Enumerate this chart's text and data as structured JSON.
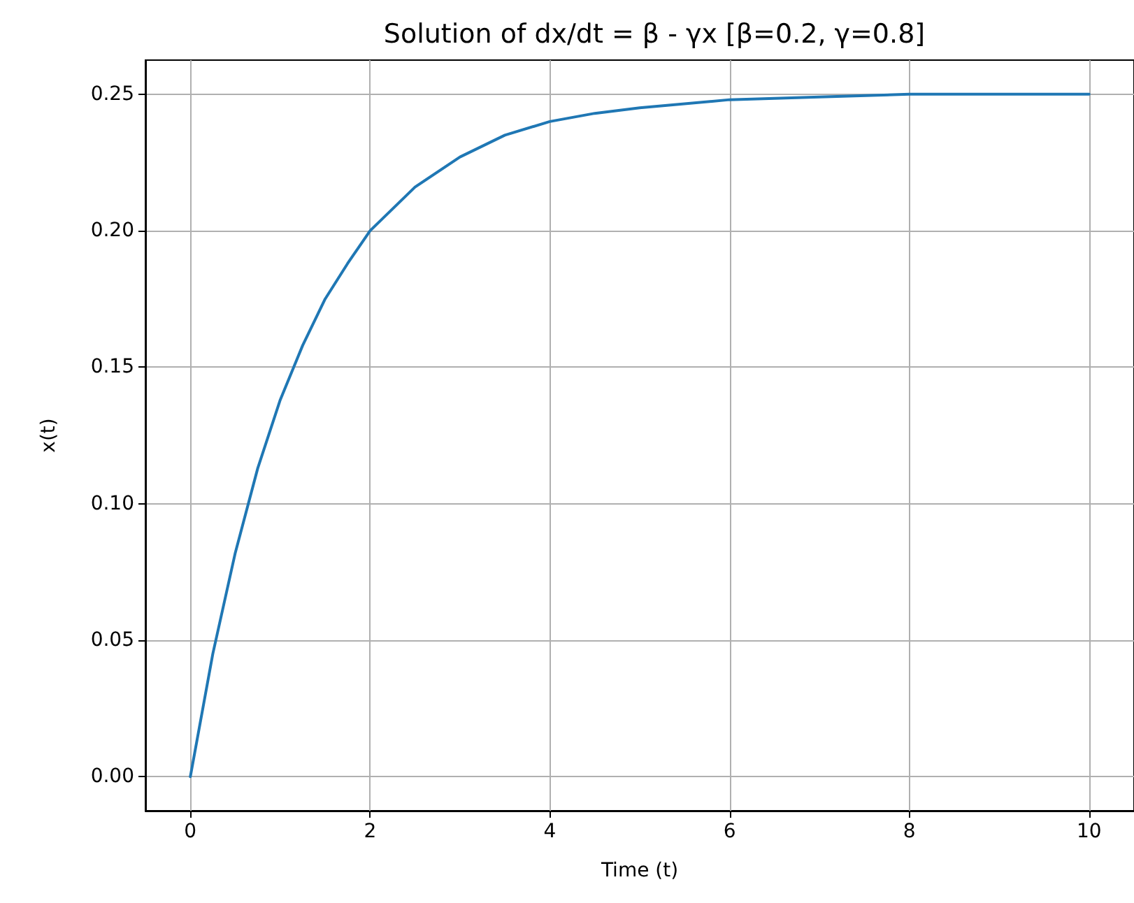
{
  "chart_data": {
    "type": "line",
    "title": "Solution of dx/dt = β - γx [β=0.2, γ=0.8]",
    "xlabel": "Time (t)",
    "ylabel": "x(t)",
    "x": [
      0,
      0.25,
      0.5,
      0.75,
      1,
      1.25,
      1.5,
      1.75,
      2,
      2.5,
      3,
      3.5,
      4,
      4.5,
      5,
      6,
      7,
      8,
      9,
      10
    ],
    "series": [
      {
        "color": "#1f77b4",
        "values": [
          0,
          0.045,
          0.082,
          0.113,
          0.138,
          0.158,
          0.175,
          0.188,
          0.2,
          0.216,
          0.227,
          0.235,
          0.24,
          0.243,
          0.245,
          0.248,
          0.249,
          0.25,
          0.25,
          0.25
        ]
      }
    ],
    "xlim": [
      -0.5,
      10.5
    ],
    "ylim": [
      -0.0125,
      0.2625
    ],
    "xticks": [
      0,
      2,
      4,
      6,
      8,
      10
    ],
    "yticks": [
      {
        "value": 0,
        "label": "0.00"
      },
      {
        "value": 0.05,
        "label": "0.05"
      },
      {
        "value": 0.1,
        "label": "0.10"
      },
      {
        "value": 0.15,
        "label": "0.15"
      },
      {
        "value": 0.2,
        "label": "0.20"
      },
      {
        "value": 0.25,
        "label": "0.25"
      }
    ],
    "grid": true,
    "marker": "none",
    "line_style": "solid"
  }
}
